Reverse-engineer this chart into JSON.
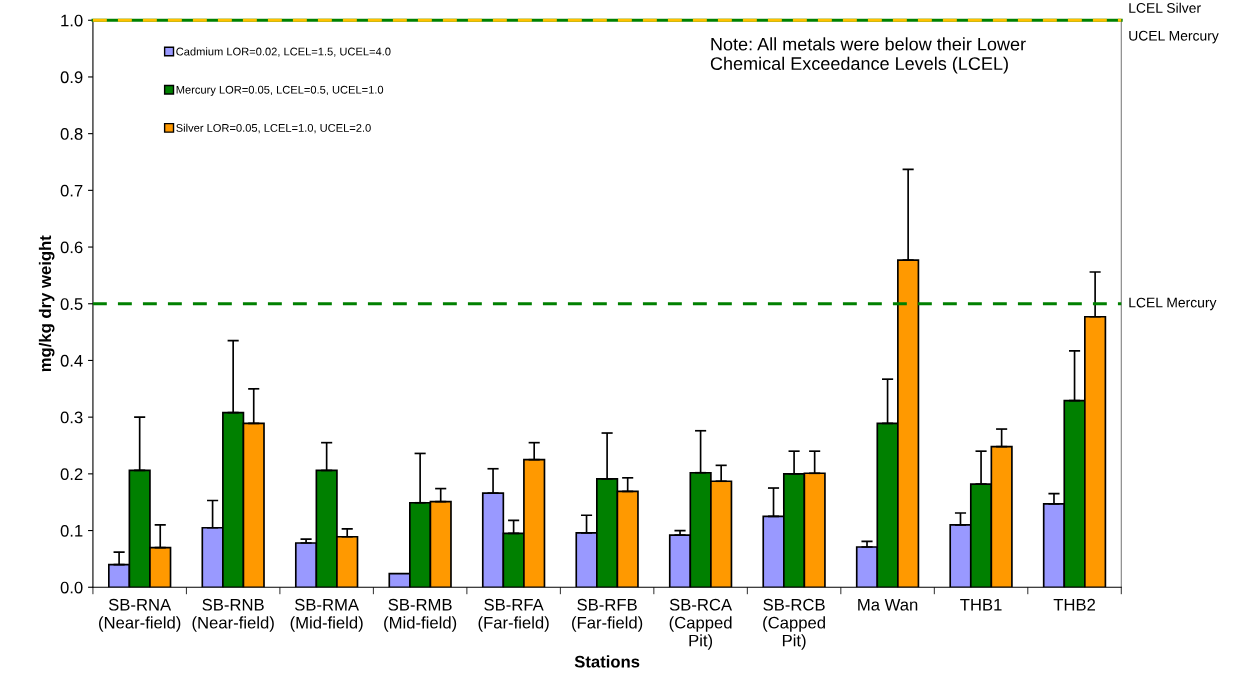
{
  "chart_data": {
    "type": "bar",
    "xlabel": "Stations",
    "ylabel": "mg/kg dry weight",
    "categories": [
      "SB-RNA\n(Near-field)",
      "SB-RNB\n(Near-field)",
      "SB-RMA\n(Mid-field)",
      "SB-RMB\n(Mid-field)",
      "SB-RFA\n(Far-field)",
      "SB-RFB\n(Far-field)",
      "SB-RCA\n(Capped\nPit)",
      "SB-RCB\n(Capped\nPit)",
      "Ma Wan",
      "THB1",
      "THB2"
    ],
    "series": [
      {
        "name": "Cadmium LOR=0.02, LCEL=1.5, UCEL=4.0",
        "color": "#9999ff",
        "values": [
          0.04,
          0.105,
          0.078,
          0.024,
          0.166,
          0.096,
          0.092,
          0.125,
          0.071,
          0.11,
          0.147
        ],
        "errors": [
          [
            0.04,
            0.062
          ],
          [
            0.105,
            0.153
          ],
          [
            0.078,
            0.085
          ],
          null,
          [
            0.166,
            0.209
          ],
          [
            0.096,
            0.127
          ],
          [
            0.092,
            0.1
          ],
          [
            0.125,
            0.175
          ],
          [
            0.071,
            0.081
          ],
          [
            0.11,
            0.131
          ],
          [
            0.147,
            0.165
          ]
        ]
      },
      {
        "name": "Mercury LOR=0.05, LCEL=0.5, UCEL=1.0",
        "color": "#008000",
        "values": [
          0.206,
          0.308,
          0.206,
          0.149,
          0.095,
          0.191,
          0.202,
          0.2,
          0.289,
          0.182,
          0.329
        ],
        "errors": [
          [
            0.206,
            0.3
          ],
          [
            0.308,
            0.435
          ],
          [
            0.206,
            0.255
          ],
          [
            0.149,
            0.236
          ],
          [
            0.095,
            0.118
          ],
          [
            0.191,
            0.272
          ],
          [
            0.202,
            0.276
          ],
          [
            0.2,
            0.24
          ],
          [
            0.289,
            0.367
          ],
          [
            0.182,
            0.24
          ],
          [
            0.329,
            0.417
          ]
        ]
      },
      {
        "name": "Silver LOR=0.05, LCEL=1.0, UCEL=2.0",
        "color": "#ff9900",
        "values": [
          0.07,
          0.289,
          0.089,
          0.151,
          0.225,
          0.169,
          0.187,
          0.201,
          0.577,
          0.248,
          0.477
        ],
        "errors": [
          [
            0.07,
            0.11
          ],
          [
            0.289,
            0.35
          ],
          [
            0.089,
            0.103
          ],
          [
            0.151,
            0.174
          ],
          [
            0.225,
            0.255
          ],
          [
            0.169,
            0.193
          ],
          [
            0.187,
            0.215
          ],
          [
            0.201,
            0.24
          ],
          [
            0.577,
            0.737
          ],
          [
            0.248,
            0.279
          ],
          [
            0.477,
            0.556
          ]
        ]
      }
    ],
    "ylim": [
      0,
      1.0
    ],
    "yticks": [
      {
        "value": 0,
        "label": "0.0"
      },
      {
        "value": 0.1,
        "label": "0.1"
      },
      {
        "value": 0.2,
        "label": "0.2"
      },
      {
        "value": 0.3,
        "label": "0.3"
      },
      {
        "value": 0.4,
        "label": "0.4"
      },
      {
        "value": 0.5,
        "label": "0.5"
      },
      {
        "value": 0.6,
        "label": "0.6"
      },
      {
        "value": 0.7,
        "label": "0.7"
      },
      {
        "value": 0.8,
        "label": "0.8"
      },
      {
        "value": 0.9,
        "label": "0.9"
      },
      {
        "value": 1.0,
        "label": "1.0"
      }
    ],
    "ref_lines": [
      {
        "axis": "y",
        "value": 0.5,
        "label": "LCEL Mercury",
        "color": "#008000",
        "line_style": "dashed"
      },
      {
        "axis": "y",
        "value": 1.0,
        "label": "UCEL Mercury",
        "color": "#008000",
        "line_style": "solid"
      },
      {
        "axis": "y",
        "value": 1.0,
        "label": "LCEL Silver",
        "color": "#ffc000",
        "line_style": "dashed"
      }
    ],
    "annotations": [
      "Note: All metals were below their Lower\nChemical Exceedance Levels (LCEL)"
    ],
    "legend": "top left",
    "grid": false
  }
}
